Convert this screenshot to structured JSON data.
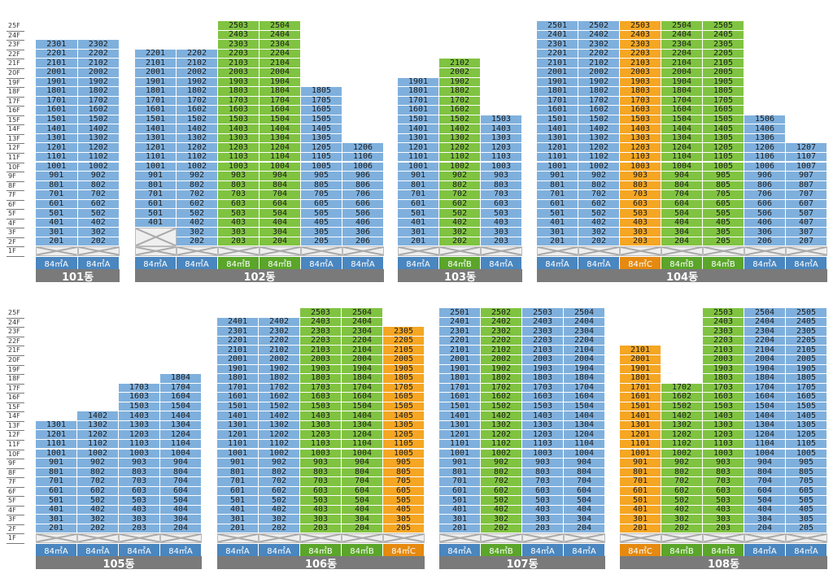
{
  "floors": [
    "1F",
    "2F",
    "3F",
    "4F",
    "5F",
    "6F",
    "7F",
    "8F",
    "9F",
    "10F",
    "11F",
    "12F",
    "13F",
    "14F",
    "15F",
    "16F",
    "17F",
    "18F",
    "19F",
    "20F",
    "21F",
    "22F",
    "23F",
    "24F",
    "25F"
  ],
  "colors": {
    "A": "#7fb0dd",
    "B": "#80c341",
    "C": "#f5a623",
    "label_A": "#4a86bf",
    "label_B": "#5aa52a",
    "label_C": "#e5890f",
    "building_bar": "#7a7a7a"
  },
  "buildings": [
    {
      "name": "101동",
      "lines": [
        {
          "line": 1,
          "type": "A",
          "label": "84㎡A",
          "top": 23
        },
        {
          "line": 2,
          "type": "A",
          "label": "84㎡A",
          "top": 23
        }
      ]
    },
    {
      "name": "102동",
      "lines": [
        {
          "line": 1,
          "type": "A",
          "label": "84㎡A",
          "top": 22,
          "pilotis2": true
        },
        {
          "line": 2,
          "type": "A",
          "label": "84㎡A",
          "top": 22
        },
        {
          "line": 3,
          "type": "B",
          "label": "84㎡B",
          "top": 25
        },
        {
          "line": 4,
          "type": "B",
          "label": "84㎡B",
          "top": 25
        },
        {
          "line": 5,
          "type": "A",
          "label": "84㎡A",
          "top": 18
        },
        {
          "line": 6,
          "type": "A",
          "label": "84㎡A",
          "top": 12
        }
      ]
    },
    {
      "name": "103동",
      "lines": [
        {
          "line": 1,
          "type": "A",
          "label": "84㎡A",
          "top": 19
        },
        {
          "line": 2,
          "type": "B",
          "label": "84㎡B",
          "top": 21
        },
        {
          "line": 3,
          "type": "A",
          "label": "84㎡A",
          "top": 15
        }
      ]
    },
    {
      "name": "104동",
      "lines": [
        {
          "line": 1,
          "type": "A",
          "label": "84㎡A",
          "top": 25
        },
        {
          "line": 2,
          "type": "A",
          "label": "84㎡A",
          "top": 25
        },
        {
          "line": 3,
          "type": "C",
          "label": "84㎡C",
          "top": 25
        },
        {
          "line": 4,
          "type": "B",
          "label": "84㎡B",
          "top": 25
        },
        {
          "line": 5,
          "type": "B",
          "label": "84㎡B",
          "top": 25
        },
        {
          "line": 6,
          "type": "A",
          "label": "84㎡A",
          "top": 15
        },
        {
          "line": 7,
          "type": "A",
          "label": "84㎡A",
          "top": 12
        }
      ]
    },
    {
      "name": "105동",
      "lines": [
        {
          "line": 1,
          "type": "A",
          "label": "84㎡A",
          "top": 13
        },
        {
          "line": 2,
          "type": "A",
          "label": "84㎡A",
          "top": 14
        },
        {
          "line": 3,
          "type": "A",
          "label": "84㎡A",
          "top": 17
        },
        {
          "line": 4,
          "type": "A",
          "label": "84㎡A",
          "top": 18
        }
      ]
    },
    {
      "name": "106동",
      "lines": [
        {
          "line": 1,
          "type": "A",
          "label": "84㎡A",
          "top": 24
        },
        {
          "line": 2,
          "type": "A",
          "label": "84㎡A",
          "top": 24
        },
        {
          "line": 3,
          "type": "B",
          "label": "84㎡B",
          "top": 25
        },
        {
          "line": 4,
          "type": "B",
          "label": "84㎡B",
          "top": 25
        },
        {
          "line": 5,
          "type": "C",
          "label": "84㎡C",
          "top": 23
        }
      ]
    },
    {
      "name": "107동",
      "lines": [
        {
          "line": 1,
          "type": "A",
          "label": "84㎡A",
          "top": 25
        },
        {
          "line": 2,
          "type": "B",
          "label": "84㎡B",
          "top": 25
        },
        {
          "line": 3,
          "type": "A",
          "label": "84㎡A",
          "top": 25
        },
        {
          "line": 4,
          "type": "A",
          "label": "84㎡A",
          "top": 25
        }
      ]
    },
    {
      "name": "108동",
      "lines": [
        {
          "line": 1,
          "type": "C",
          "label": "84㎡C",
          "top": 21
        },
        {
          "line": 2,
          "type": "B",
          "label": "84㎡B",
          "top": 17
        },
        {
          "line": 3,
          "type": "B",
          "label": "84㎡B",
          "top": 25
        },
        {
          "line": 4,
          "type": "A",
          "label": "84㎡A",
          "top": 25
        },
        {
          "line": 5,
          "type": "A",
          "label": "84㎡A",
          "top": 25
        }
      ]
    }
  ]
}
